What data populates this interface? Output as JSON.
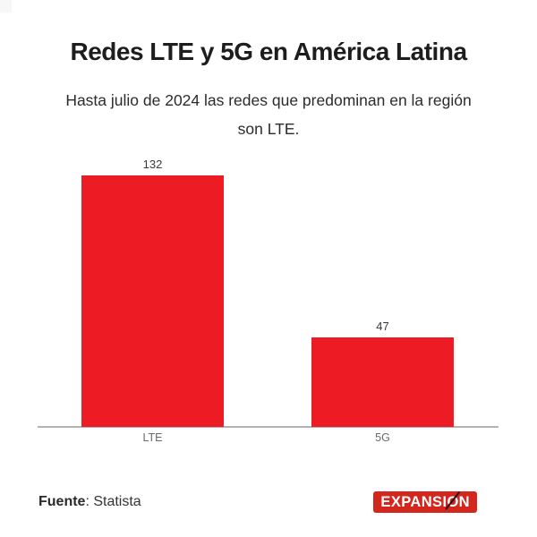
{
  "header": {
    "title": "Redes LTE y 5G en América Latina",
    "subtitle_line1": "Hasta julio de 2024 las redes que predominan en la región",
    "subtitle_line2": "son LTE."
  },
  "chart_data": {
    "type": "bar",
    "title": "Redes LTE y 5G en América Latina",
    "subtitle": "Hasta julio de 2024 las redes que predominan en la región son LTE.",
    "categories": [
      "LTE",
      "5G"
    ],
    "values": [
      132,
      47
    ],
    "value_labels": [
      "132",
      "47"
    ],
    "bar_color": "#ed1c24",
    "xlabel": "",
    "ylabel": "",
    "ylim": [
      0,
      140
    ],
    "grid": false,
    "legend": "none",
    "axis_line_color": "#b3b3b3"
  },
  "footer": {
    "source_label": "Fuente",
    "source_rest": ": Statista",
    "logo_prefix": "EXPANSI",
    "logo_o": "O",
    "logo_suffix": "N",
    "logo_full_text": "EXPANSIÓN",
    "logo_bg": "#d3271e",
    "logo_text_color": "#ffffff"
  }
}
